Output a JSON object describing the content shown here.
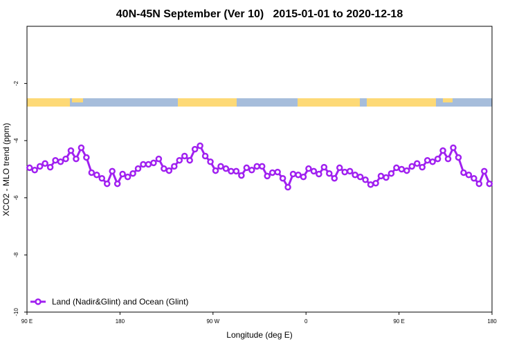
{
  "chart_data": {
    "type": "line",
    "title": "40N-45N September (Ver 10)   2015-01-01 to 2020-12-18",
    "x_label": "Longitude (deg E)",
    "y_label": "XCO2 - MLO trend (ppm)",
    "x": [
      92.5,
      97.5,
      102.5,
      107.5,
      112.5,
      117.5,
      122.5,
      127.5,
      132.5,
      137.5,
      142.5,
      147.5,
      152.5,
      157.5,
      162.5,
      167.5,
      172.5,
      177.5,
      182.5,
      187.5,
      192.5,
      197.5,
      202.5,
      207.5,
      212.5,
      217.5,
      222.5,
      227.5,
      232.5,
      237.5,
      242.5,
      247.5,
      252.5,
      257.5,
      262.5,
      267.5,
      272.5,
      277.5,
      282.5,
      287.5,
      292.5,
      297.5,
      302.5,
      307.5,
      312.5,
      317.5,
      322.5,
      327.5,
      332.5,
      337.5,
      342.5,
      347.5,
      352.5,
      357.5,
      362.5,
      367.5,
      372.5,
      377.5,
      382.5,
      387.5,
      392.5,
      397.5,
      402.5,
      407.5,
      412.5,
      417.5,
      422.5,
      427.5,
      432.5,
      437.5,
      442.5,
      447.5,
      452.5,
      457.5,
      462.5,
      467.5,
      472.5,
      477.5,
      482.5,
      487.5,
      492.5,
      497.5,
      502.5,
      507.5,
      512.5,
      517.5,
      522.5,
      527.5,
      532.5,
      537.5
    ],
    "series": [
      {
        "name": "Land (Nadir&Glint) and Ocean (Glint)",
        "color": "#a020f0",
        "values": [
          -4.95,
          -5.03,
          -4.9,
          -4.8,
          -4.93,
          -4.69,
          -4.74,
          -4.64,
          -4.35,
          -4.64,
          -4.25,
          -4.59,
          -5.12,
          -5.2,
          -5.32,
          -5.51,
          -5.07,
          -5.51,
          -5.17,
          -5.27,
          -5.15,
          -4.98,
          -4.83,
          -4.83,
          -4.78,
          -4.64,
          -4.98,
          -5.05,
          -4.9,
          -4.69,
          -4.54,
          -4.69,
          -4.3,
          -4.18,
          -4.54,
          -4.74,
          -5.05,
          -4.9,
          -4.98,
          -5.07,
          -5.07,
          -5.22,
          -4.95,
          -5.03,
          -4.9,
          -4.9,
          -5.24,
          -5.12,
          -5.1,
          -5.32,
          -5.63,
          -5.17,
          -5.2,
          -5.27,
          -4.98,
          -5.07,
          -5.17,
          -4.93,
          -5.15,
          -5.32,
          -4.95,
          -5.1,
          -5.07,
          -5.2,
          -5.27,
          -5.37,
          -5.54,
          -5.49,
          -5.24,
          -5.29,
          -5.15,
          -4.95,
          -5.0,
          -5.05,
          -4.9,
          -4.8,
          -4.93,
          -4.69,
          -4.74,
          -4.64,
          -4.35,
          -4.64,
          -4.25,
          -4.59,
          -5.12,
          -5.2,
          -5.32,
          -5.51,
          -5.07,
          -5.51
        ]
      }
    ],
    "xlim": [
      90,
      540
    ],
    "xticks": [
      {
        "value": 90,
        "label": "90 E"
      },
      180,
      {
        "value": 270,
        "label": "90 W"
      },
      {
        "value": 360,
        "label": "0"
      },
      {
        "value": 450,
        "label": "90 E"
      },
      {
        "value": 540,
        "label": "180"
      }
    ],
    "ylim": [
      -10,
      0
    ],
    "yticks": [
      -10,
      -8,
      -6,
      -4,
      -2
    ],
    "legend": "bottom-left"
  }
}
